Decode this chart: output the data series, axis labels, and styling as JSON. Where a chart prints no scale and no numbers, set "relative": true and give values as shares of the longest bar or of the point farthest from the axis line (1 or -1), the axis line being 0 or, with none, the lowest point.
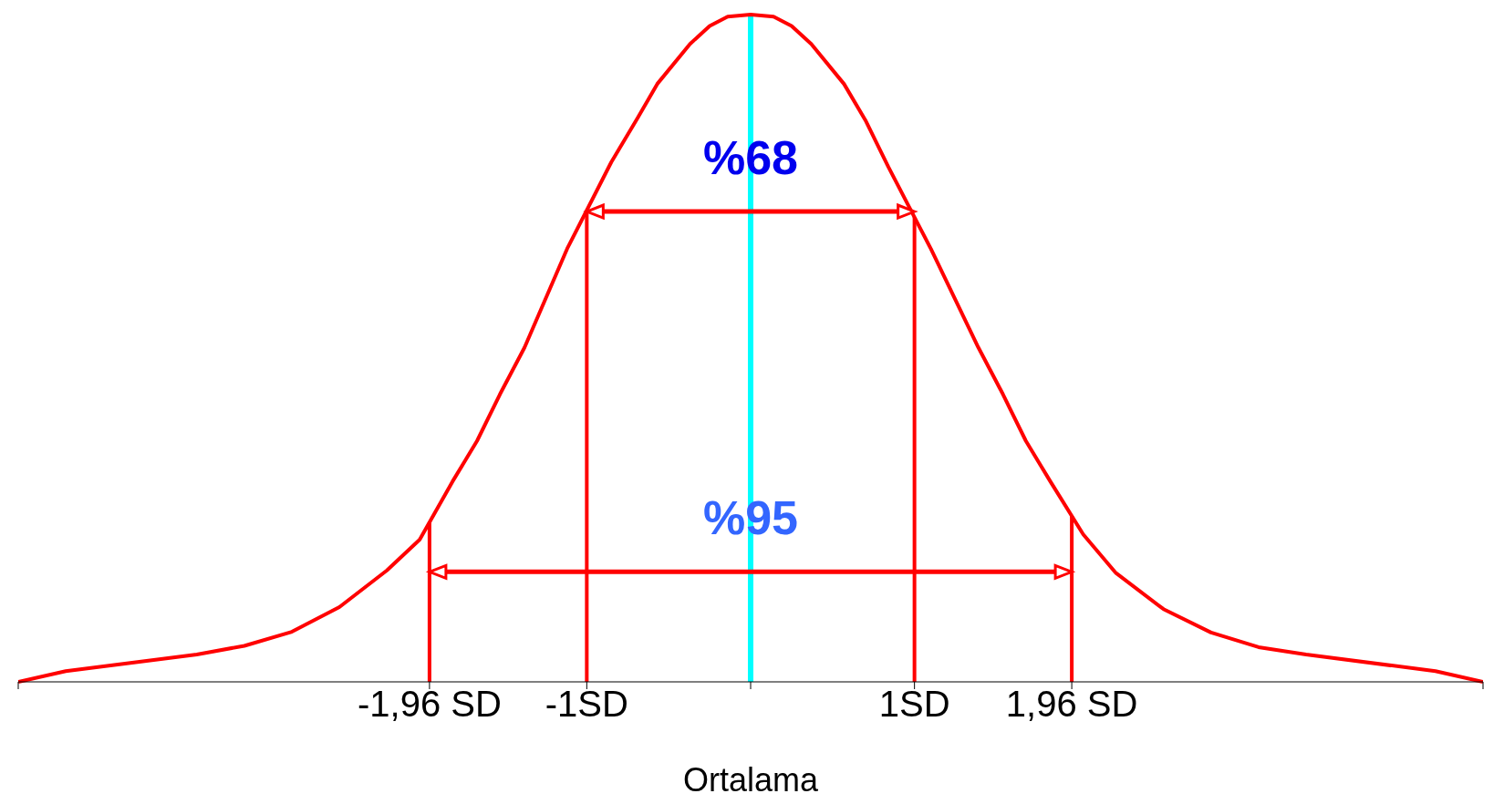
{
  "chart_data": {
    "type": "line",
    "relative": true,
    "xlabel": "Ortalama",
    "x": [
      -4.47,
      -4.18,
      -3.38,
      -3.09,
      -2.8,
      -2.51,
      -2.22,
      -2.02,
      -1.82,
      -1.67,
      -1.53,
      -1.38,
      -1.12,
      -0.85,
      -0.69,
      -0.57,
      -0.37,
      -0.25,
      -0.14,
      0,
      0.14,
      0.25,
      0.37,
      0.57,
      0.7,
      0.84,
      1.1,
      1.39,
      1.54,
      1.68,
      1.83,
      2.03,
      2.23,
      2.52,
      2.81,
      3.1,
      3.39,
      4.18,
      4.47
    ],
    "series": [
      {
        "color": "#ff0000",
        "values": [
          0,
          0.016,
          0.041,
          0.054,
          0.075,
          0.112,
          0.167,
          0.213,
          0.3,
          0.361,
          0.431,
          0.501,
          0.649,
          0.779,
          0.845,
          0.896,
          0.956,
          0.983,
          0.997,
          1,
          0.997,
          0.983,
          0.956,
          0.896,
          0.842,
          0.772,
          0.649,
          0.501,
          0.431,
          0.361,
          0.3,
          0.221,
          0.163,
          0.109,
          0.074,
          0.052,
          0.041,
          0.016,
          0
        ]
      }
    ],
    "xlim": [
      -4.47,
      4.47
    ],
    "xticks": [
      {
        "value": -4.47,
        "label": null
      },
      {
        "value": -1.96,
        "label": "-1,96 SD"
      },
      {
        "value": -1,
        "label": "-1SD"
      },
      {
        "value": 0,
        "label": null
      },
      {
        "value": 1,
        "label": "1SD"
      },
      {
        "value": 1.96,
        "label": "1,96 SD"
      },
      {
        "value": 4.47,
        "label": null
      }
    ],
    "ref_lines": [
      {
        "axis": "x",
        "value": -1.96,
        "color": "#ff0000"
      },
      {
        "axis": "x",
        "value": -1,
        "color": "#ff0000"
      },
      {
        "axis": "x",
        "value": 1,
        "color": "#ff0000"
      },
      {
        "axis": "x",
        "value": 1.96,
        "color": "#ff0000"
      },
      {
        "axis": "x",
        "value": 0,
        "color": "#00ffff"
      }
    ],
    "annotations": [
      {
        "text": "%68",
        "x": 0,
        "y": 0.78
      },
      {
        "text": "%95",
        "x": 0,
        "y": 0.24
      }
    ],
    "marker": "none",
    "line_style": "solid"
  }
}
